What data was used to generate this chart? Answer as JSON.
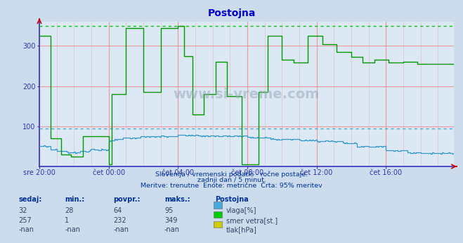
{
  "title": "Postojna",
  "bg_color": "#ccdcec",
  "plot_bg_color": "#dce8f4",
  "grid_major_color": "#ee9999",
  "grid_minor_color": "#ddbbbb",
  "hline_vlaga_y": 95,
  "hline_vlaga_color": "#44aadd",
  "hline_smer_y": 349,
  "hline_smer_color": "#00cc00",
  "vlaga_color": "#3399cc",
  "smer_color": "#009900",
  "ylim": [
    0,
    360
  ],
  "total_points": 288,
  "x_tick_indices": [
    0,
    48,
    96,
    144,
    192,
    240
  ],
  "x_tick_labels": [
    "sre 20:00",
    "čet 00:00",
    "čet 04:00",
    "čet 08:00",
    "čet 12:00",
    "čet 16:00"
  ],
  "y_ticks": [
    100,
    200,
    300
  ],
  "subtitle1": "Slovenija / vremenski podatki - ročne postaje.",
  "subtitle2": "zadnji dan / 5 minut.",
  "subtitle3": "Meritve: trenutne  Enote: metrične  Črta: 95% meritev",
  "col_headers": [
    "sedaj:",
    "min.:",
    "povpr.:",
    "maks.:",
    "Postojna"
  ],
  "row1_vals": [
    "32",
    "28",
    "64",
    "95"
  ],
  "row2_vals": [
    "257",
    "1",
    "232",
    "349"
  ],
  "row3_vals": [
    "-nan",
    "-nan",
    "-nan",
    "-nan"
  ],
  "legend_labels": [
    "vlaga[%]",
    "smer vetra[st.]",
    "tlak[hPa]"
  ],
  "legend_colors": [
    "#44aadd",
    "#00cc00",
    "#cccc00"
  ],
  "text_color_dark": "#003399",
  "text_color_data": "#334466",
  "axis_color": "#3333aa",
  "tick_color": "#3333aa",
  "spine_color": "#3333bb",
  "arrow_color": "#cc0000",
  "watermark_text": "www.si-vreme.com",
  "watermark_color": "#99aabb"
}
